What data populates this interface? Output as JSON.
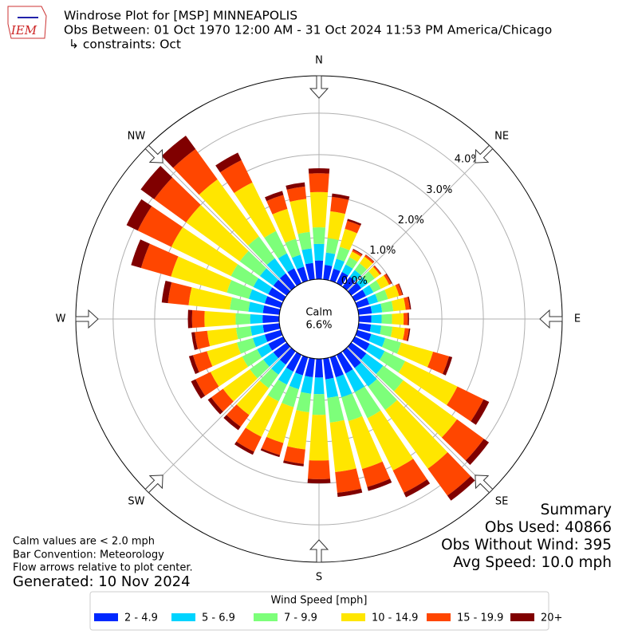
{
  "chart_data": {
    "type": "windrose",
    "logo": "IEM",
    "title": "Windrose Plot for [MSP] MINNEAPOLIS",
    "subtitle": "Obs Between: 01 Oct 1970 12:00 AM - 31 Oct 2024 11:53 PM America/Chicago",
    "constraints": "↳ constraints: Oct",
    "compass": [
      "N",
      "NE",
      "E",
      "SE",
      "S",
      "SW",
      "W",
      "NW"
    ],
    "calm_label": "Calm",
    "calm_value": "6.6%",
    "ylim": [
      0,
      4.9
    ],
    "yticks": [
      {
        "value": 0,
        "label": "0.0%"
      },
      {
        "value": 1,
        "label": "1.0%"
      },
      {
        "value": 2,
        "label": "2.0%"
      },
      {
        "value": 3,
        "label": "3.0%"
      },
      {
        "value": 4,
        "label": "4.0%"
      }
    ],
    "legend_title": "Wind Speed [mph]",
    "series": [
      {
        "name": "2 - 4.9",
        "color": "#0028ff",
        "values": [
          0.45,
          0.35,
          0.3,
          0.3,
          0.3,
          0.3,
          0.3,
          0.3,
          0.32,
          0.3,
          0.3,
          0.35,
          0.4,
          0.45,
          0.5,
          0.5,
          0.5,
          0.5,
          0.45,
          0.45,
          0.45,
          0.45,
          0.4,
          0.4,
          0.4,
          0.4,
          0.4,
          0.4,
          0.4,
          0.4,
          0.4,
          0.4,
          0.4,
          0.4,
          0.35,
          0.4
        ]
      },
      {
        "name": "5 - 6.9",
        "color": "#00d4ff",
        "values": [
          0.4,
          0.3,
          0.25,
          0.2,
          0.2,
          0.2,
          0.2,
          0.22,
          0.25,
          0.25,
          0.25,
          0.35,
          0.4,
          0.5,
          0.55,
          0.5,
          0.5,
          0.45,
          0.4,
          0.4,
          0.35,
          0.35,
          0.3,
          0.3,
          0.3,
          0.3,
          0.3,
          0.3,
          0.35,
          0.4,
          0.4,
          0.4,
          0.45,
          0.4,
          0.3,
          0.35
        ]
      },
      {
        "name": "7 - 9.9",
        "color": "#7dff7a",
        "values": [
          0.4,
          0.35,
          0.3,
          0.2,
          0.2,
          0.2,
          0.2,
          0.25,
          0.27,
          0.25,
          0.27,
          0.4,
          0.55,
          0.6,
          0.7,
          0.7,
          0.6,
          0.6,
          0.5,
          0.45,
          0.45,
          0.45,
          0.4,
          0.4,
          0.4,
          0.4,
          0.35,
          0.35,
          0.45,
          0.55,
          0.6,
          0.6,
          0.65,
          0.6,
          0.4,
          0.4
        ]
      },
      {
        "name": "10 - 14.9",
        "color": "#ffe600",
        "values": [
          0.85,
          0.65,
          0.45,
          0.15,
          0.2,
          0.15,
          0.22,
          0.28,
          0.3,
          0.28,
          0.3,
          0.8,
          1.4,
          1.6,
          1.75,
          1.4,
          1.2,
          1.2,
          1.1,
          0.9,
          0.9,
          0.95,
          0.8,
          0.8,
          0.85,
          0.75,
          0.7,
          0.75,
          1.0,
          1.4,
          1.6,
          1.6,
          1.7,
          1.3,
          0.75,
          0.8
        ]
      },
      {
        "name": "15 - 19.9",
        "color": "#ff4600",
        "values": [
          0.45,
          0.35,
          0.2,
          0.05,
          0.05,
          0.04,
          0.06,
          0.08,
          0.1,
          0.1,
          0.1,
          0.4,
          0.7,
          0.8,
          0.8,
          0.6,
          0.45,
          0.5,
          0.45,
          0.35,
          0.3,
          0.4,
          0.35,
          0.35,
          0.4,
          0.35,
          0.3,
          0.3,
          0.5,
          0.75,
          0.9,
          0.95,
          0.9,
          0.6,
          0.35,
          0.3
        ]
      },
      {
        "name": "20+",
        "color": "#800000",
        "values": [
          0.12,
          0.08,
          0.05,
          0.02,
          0.01,
          0.01,
          0.02,
          0.02,
          0.03,
          0.03,
          0.03,
          0.08,
          0.15,
          0.15,
          0.15,
          0.12,
          0.1,
          0.1,
          0.1,
          0.06,
          0.05,
          0.08,
          0.1,
          0.1,
          0.12,
          0.1,
          0.08,
          0.1,
          0.15,
          0.25,
          0.3,
          0.4,
          0.4,
          0.2,
          0.1,
          0.1
        ]
      }
    ],
    "summary": [
      "Summary",
      "Obs Used: 40866",
      "Obs Without Wind: 395",
      "Avg Speed: 10.0 mph"
    ],
    "notes": [
      "Calm values are < 2.0 mph",
      "Bar Convention: Meteorology",
      "Flow arrows relative to plot center."
    ],
    "generated": "Generated: 10 Nov 2024"
  }
}
